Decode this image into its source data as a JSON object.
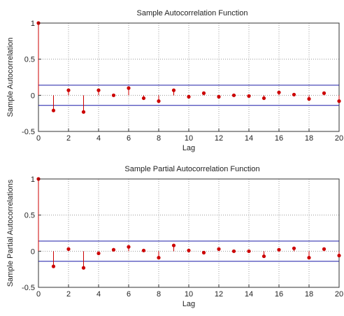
{
  "chart_data": [
    {
      "type": "stem",
      "title": "Sample Autocorrelation Function",
      "xlabel": "Lag",
      "ylabel": "Sample Autocorrelation",
      "xlim": [
        0,
        20
      ],
      "ylim": [
        -0.5,
        1
      ],
      "xticks": [
        "0",
        "2",
        "4",
        "6",
        "8",
        "10",
        "12",
        "14",
        "16",
        "18",
        "20"
      ],
      "yticks": [
        "-0.5",
        "0",
        "0.5",
        "1"
      ],
      "grid": true,
      "bounds": [
        0.14,
        -0.14
      ],
      "x": [
        0,
        1,
        2,
        3,
        4,
        5,
        6,
        7,
        8,
        9,
        10,
        11,
        12,
        13,
        14,
        15,
        16,
        17,
        18,
        19,
        20
      ],
      "values": [
        1.0,
        -0.21,
        0.07,
        -0.23,
        0.07,
        0.0,
        0.1,
        -0.04,
        -0.08,
        0.07,
        -0.02,
        0.03,
        -0.02,
        0.0,
        -0.01,
        -0.04,
        0.04,
        0.01,
        -0.05,
        0.03,
        -0.08
      ]
    },
    {
      "type": "stem",
      "title": "Sample Partial Autocorrelation Function",
      "xlabel": "Lag",
      "ylabel": "Sample Partial Autocorrelations",
      "xlim": [
        0,
        20
      ],
      "ylim": [
        -0.5,
        1
      ],
      "xticks": [
        "0",
        "2",
        "4",
        "6",
        "8",
        "10",
        "12",
        "14",
        "16",
        "18",
        "20"
      ],
      "yticks": [
        "-0.5",
        "0",
        "0.5",
        "1"
      ],
      "grid": true,
      "bounds": [
        0.14,
        -0.14
      ],
      "x": [
        0,
        1,
        2,
        3,
        4,
        5,
        6,
        7,
        8,
        9,
        10,
        11,
        12,
        13,
        14,
        15,
        16,
        17,
        18,
        19,
        20
      ],
      "values": [
        1.0,
        -0.21,
        0.03,
        -0.23,
        -0.03,
        0.02,
        0.06,
        0.01,
        -0.09,
        0.08,
        0.01,
        -0.02,
        0.03,
        0.0,
        0.0,
        -0.07,
        0.02,
        0.04,
        -0.09,
        0.03,
        -0.06
      ]
    }
  ],
  "colors": {
    "stem": "#cc0000",
    "bounds": "#1a1aa8",
    "axes": "#333333",
    "grid": "#888888"
  }
}
